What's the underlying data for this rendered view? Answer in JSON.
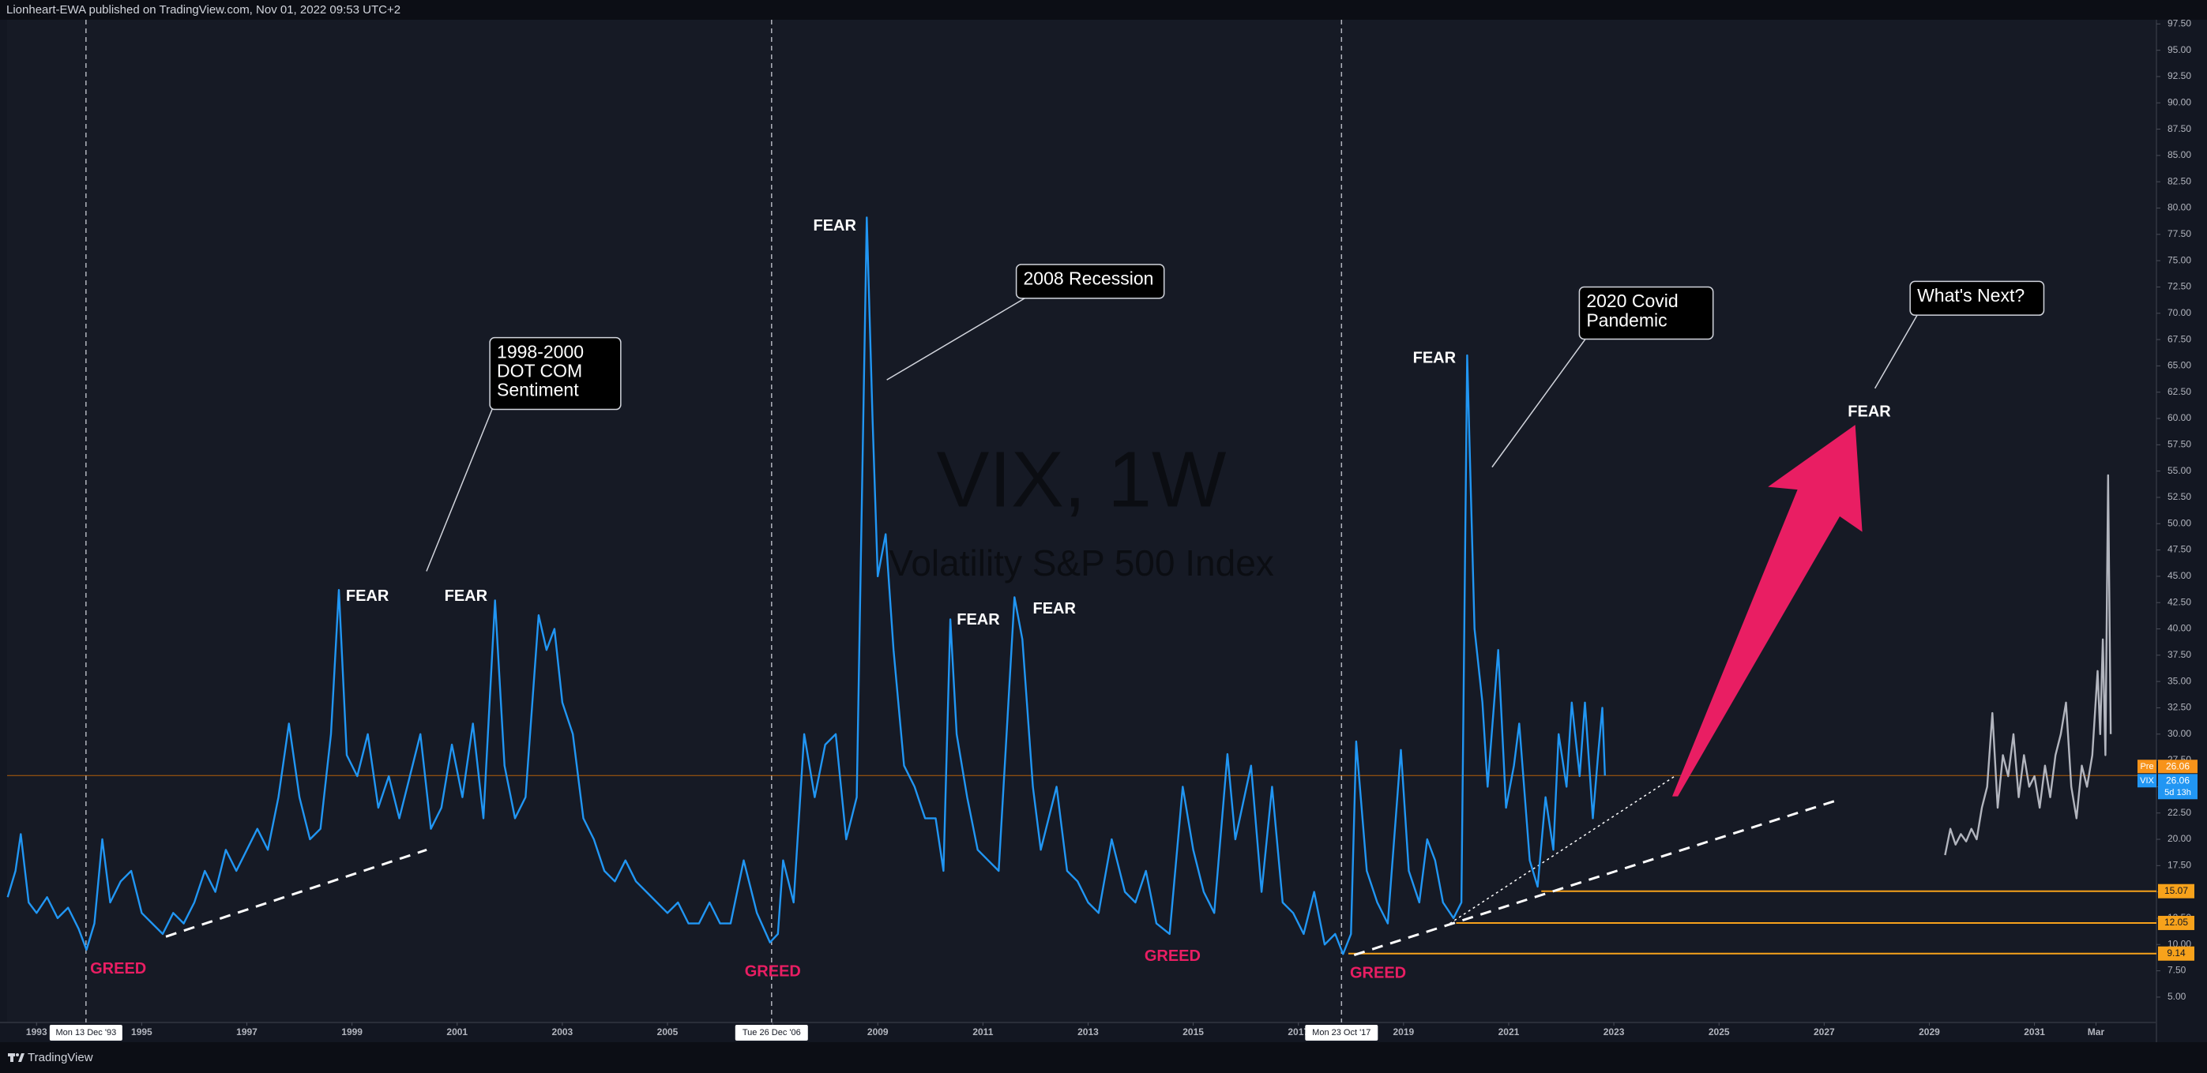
{
  "header": "Lionheart-EWA published on TradingView.com, Nov 01, 2022 09:53 UTC+2",
  "footer": "TradingView",
  "chart_data": {
    "type": "line",
    "title": "VIX, 1W",
    "subtitle": "Volatility S&P 500 Index",
    "xlim": [
      1992.44,
      2033.32
    ],
    "ylim": [
      2.59,
      97.9
    ],
    "xticks": [
      1993,
      1995,
      1997,
      1999,
      2001,
      2003,
      2005,
      2007,
      2009,
      2011,
      2013,
      2015,
      2017,
      2019,
      2021,
      2023,
      2025,
      2027,
      2029,
      2031,
      {
        "value": 2032.17,
        "label": "Mar"
      }
    ],
    "yticks": [
      {
        "value": 5,
        "label": "5.00"
      },
      {
        "value": 7.5,
        "label": "7.50"
      },
      {
        "value": 10,
        "label": "10.00"
      },
      {
        "value": 12.5,
        "label": "12.50"
      },
      {
        "value": 15,
        "label": "15.00"
      },
      {
        "value": 17.5,
        "label": "17.50"
      },
      {
        "value": 20,
        "label": "20.00"
      },
      {
        "value": 22.5,
        "label": "22.50"
      },
      {
        "value": 25,
        "label": "25.00"
      },
      {
        "value": 27.5,
        "label": "27.50"
      },
      {
        "value": 30,
        "label": "30.00"
      },
      {
        "value": 32.5,
        "label": "32.50"
      },
      {
        "value": 35,
        "label": "35.00"
      },
      {
        "value": 37.5,
        "label": "37.50"
      },
      {
        "value": 40,
        "label": "40.00"
      },
      {
        "value": 42.5,
        "label": "42.50"
      },
      {
        "value": 45,
        "label": "45.00"
      },
      {
        "value": 47.5,
        "label": "47.50"
      },
      {
        "value": 50,
        "label": "50.00"
      },
      {
        "value": 52.5,
        "label": "52.50"
      },
      {
        "value": 55,
        "label": "55.00"
      },
      {
        "value": 57.5,
        "label": "57.50"
      },
      {
        "value": 60,
        "label": "60.00"
      },
      {
        "value": 62.5,
        "label": "62.50"
      },
      {
        "value": 65,
        "label": "65.00"
      },
      {
        "value": 67.5,
        "label": "67.50"
      },
      {
        "value": 70,
        "label": "70.00"
      },
      {
        "value": 72.5,
        "label": "72.50"
      },
      {
        "value": 75,
        "label": "75.00"
      },
      {
        "value": 77.5,
        "label": "77.50"
      },
      {
        "value": 80,
        "label": "80.00"
      },
      {
        "value": 82.5,
        "label": "82.50"
      },
      {
        "value": 85,
        "label": "85.00"
      },
      {
        "value": 87.5,
        "label": "87.50"
      },
      {
        "value": 90,
        "label": "90.00"
      },
      {
        "value": 92.5,
        "label": "92.50"
      },
      {
        "value": 95,
        "label": "95.00"
      },
      {
        "value": 97.5,
        "label": "97.50"
      }
    ],
    "grid": false,
    "series": [
      {
        "name": "VIX",
        "color": "#2196f3",
        "x": [
          1992.45,
          1992.6,
          1992.7,
          1992.85,
          1993.0,
          1993.2,
          1993.4,
          1993.6,
          1993.8,
          1993.95,
          1994.1,
          1994.25,
          1994.4,
          1994.6,
          1994.8,
          1995.0,
          1995.2,
          1995.4,
          1995.6,
          1995.8,
          1996.0,
          1996.2,
          1996.4,
          1996.6,
          1996.8,
          1997.0,
          1997.2,
          1997.4,
          1997.6,
          1997.8,
          1998.0,
          1998.2,
          1998.4,
          1998.6,
          1998.75,
          1998.9,
          1999.1,
          1999.3,
          1999.5,
          1999.7,
          1999.9,
          2000.1,
          2000.3,
          2000.5,
          2000.7,
          2000.9,
          2001.1,
          2001.3,
          2001.5,
          2001.72,
          2001.9,
          2002.1,
          2002.3,
          2002.55,
          2002.7,
          2002.85,
          2003.0,
          2003.2,
          2003.4,
          2003.6,
          2003.8,
          2004.0,
          2004.2,
          2004.4,
          2004.6,
          2004.8,
          2005.0,
          2005.2,
          2005.4,
          2005.6,
          2005.8,
          2006.0,
          2006.2,
          2006.45,
          2006.7,
          2006.95,
          2007.1,
          2007.2,
          2007.4,
          2007.6,
          2007.8,
          2008.0,
          2008.2,
          2008.4,
          2008.6,
          2008.79,
          2008.9,
          2009.0,
          2009.15,
          2009.3,
          2009.5,
          2009.7,
          2009.9,
          2010.1,
          2010.25,
          2010.38,
          2010.5,
          2010.7,
          2010.9,
          2011.1,
          2011.3,
          2011.6,
          2011.75,
          2011.95,
          2012.1,
          2012.4,
          2012.6,
          2012.8,
          2013.0,
          2013.2,
          2013.45,
          2013.7,
          2013.9,
          2014.1,
          2014.3,
          2014.55,
          2014.8,
          2015.0,
          2015.2,
          2015.4,
          2015.65,
          2015.8,
          2016.1,
          2016.3,
          2016.5,
          2016.7,
          2016.9,
          2017.1,
          2017.3,
          2017.5,
          2017.7,
          2017.85,
          2018.0,
          2018.1,
          2018.3,
          2018.5,
          2018.7,
          2018.95,
          2019.1,
          2019.3,
          2019.45,
          2019.6,
          2019.75,
          2019.95,
          2020.1,
          2020.21,
          2020.35,
          2020.5,
          2020.6,
          2020.8,
          2020.95,
          2021.1,
          2021.2,
          2021.4,
          2021.55,
          2021.7,
          2021.85,
          2021.95,
          2022.1,
          2022.2,
          2022.35,
          2022.45,
          2022.6,
          2022.7,
          2022.78,
          2022.83
        ],
        "values": [
          14.5,
          17,
          20.5,
          14,
          13,
          14.5,
          12.5,
          13.5,
          11.5,
          9.5,
          12,
          20,
          14,
          16,
          17,
          13,
          12,
          11,
          13,
          12,
          14,
          17,
          15,
          19,
          17,
          19,
          21,
          19,
          24,
          31,
          24,
          20,
          21,
          30,
          43.7,
          28,
          26,
          30,
          23,
          26,
          22,
          26,
          30,
          21,
          23,
          29,
          24,
          31,
          22,
          42.7,
          27,
          22,
          24,
          41.3,
          38,
          40,
          33,
          30,
          22,
          20,
          17,
          16,
          18,
          16,
          15,
          14,
          13,
          14,
          12,
          12,
          14,
          12,
          12,
          18,
          13,
          10.2,
          11,
          18,
          14,
          30,
          24,
          29,
          30,
          20,
          24,
          79.1,
          60,
          45,
          49,
          38,
          27,
          25,
          22,
          22,
          17,
          40.9,
          30,
          24,
          19,
          18,
          17,
          43,
          39,
          25,
          19,
          25,
          17,
          16,
          14,
          13,
          20,
          15,
          14,
          17,
          12,
          11,
          25,
          19,
          15,
          13,
          28.1,
          20,
          27,
          15,
          25,
          14,
          13,
          11,
          15,
          10,
          11,
          9.1,
          11,
          29.3,
          17,
          14,
          12,
          28.5,
          17,
          14,
          20,
          18,
          14,
          12.5,
          14,
          66,
          40,
          33,
          25,
          38,
          23,
          27,
          31,
          18,
          15.5,
          24,
          19,
          30,
          25,
          33,
          26,
          33,
          22,
          28,
          32.5,
          26.06
        ]
      },
      {
        "color": "#b2b5be",
        "x": [
          2029.3,
          2029.4,
          2029.5,
          2029.6,
          2029.7,
          2029.8,
          2029.9,
          2030.0,
          2030.1,
          2030.2,
          2030.3,
          2030.4,
          2030.5,
          2030.6,
          2030.7,
          2030.8,
          2030.9,
          2031.0,
          2031.1,
          2031.2,
          2031.3,
          2031.4,
          2031.5,
          2031.6,
          2031.7,
          2031.8,
          2031.9,
          2032.0,
          2032.1,
          2032.2,
          2032.25,
          2032.3,
          2032.35,
          2032.4,
          2032.45
        ],
        "values": [
          18.5,
          21,
          19.5,
          20.5,
          19.8,
          21,
          20,
          23,
          25,
          32,
          23,
          28,
          26,
          30,
          24,
          28,
          25,
          26,
          23,
          27,
          24,
          28,
          30,
          33,
          25,
          22,
          27,
          25,
          28,
          36,
          30,
          39,
          28,
          54.6,
          30
        ]
      }
    ],
    "price_line": {
      "value": 26.06,
      "color": "#f57c00"
    },
    "premarket": {
      "label": "Pre",
      "value": 26.06,
      "color": "#f7931a"
    },
    "countdown": "5d 13h",
    "levels": [
      {
        "value": 15.07,
        "from": 2021.62
      },
      {
        "value": 12.05,
        "from": 2020.0
      },
      {
        "value": 9.14,
        "from": 2017.95
      }
    ],
    "level_color": "#f7a21b",
    "markers": [
      {
        "x": 1993.94,
        "label": "Mon 13 Dec '93"
      },
      {
        "x": 2006.98,
        "label": "Tue 26 Dec '06"
      },
      {
        "x": 2017.82,
        "label": "Mon 23 Oct '17"
      }
    ],
    "trendlines": [
      {
        "x": [
          1995.46,
          2000.42
        ],
        "y": [
          10.75,
          19.0
        ],
        "style": "dashed"
      },
      {
        "x": [
          2018.06,
          2027.24
        ],
        "y": [
          9.0,
          23.7
        ],
        "style": "dashed"
      },
      {
        "x": [
          2019.88,
          2024.16
        ],
        "y": [
          12.0,
          26.0
        ],
        "style": "dotted"
      }
    ],
    "annotations": [
      {
        "text": "FEAR",
        "color": "#ffffff"
      },
      {
        "text": "FEAR",
        "color": "#ffffff"
      },
      {
        "text": "FEAR",
        "color": "#ffffff"
      },
      {
        "text": "FEAR",
        "color": "#ffffff"
      },
      {
        "text": "FEAR",
        "color": "#ffffff"
      },
      {
        "text": "FEAR",
        "color": "#ffffff"
      },
      {
        "text": "FEAR",
        "color": "#ffffff"
      },
      {
        "text": "GREED",
        "color": "#e91e63"
      },
      {
        "text": "GREED",
        "color": "#e91e63"
      },
      {
        "text": "GREED",
        "color": "#e91e63"
      },
      {
        "text": "GREED",
        "color": "#e91e63"
      }
    ],
    "callouts": [
      {
        "lines": [
          "1998-2000",
          "DOT COM",
          "Sentiment"
        ]
      },
      {
        "lines": [
          "2008 Recession"
        ]
      },
      {
        "lines": [
          "2020 Covid",
          "Pandemic"
        ]
      },
      {
        "lines": [
          "What's Next?"
        ]
      }
    ]
  }
}
